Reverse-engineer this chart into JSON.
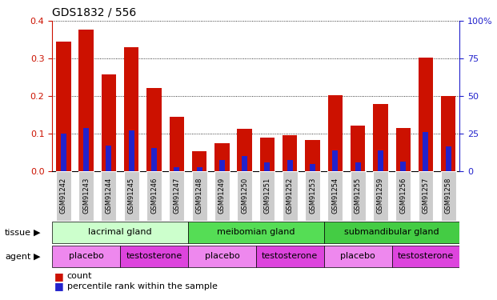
{
  "title": "GDS1832 / 556",
  "samples": [
    "GSM91242",
    "GSM91243",
    "GSM91244",
    "GSM91245",
    "GSM91246",
    "GSM91247",
    "GSM91248",
    "GSM91249",
    "GSM91250",
    "GSM91251",
    "GSM91252",
    "GSM91253",
    "GSM91254",
    "GSM91255",
    "GSM91259",
    "GSM91256",
    "GSM91257",
    "GSM91258"
  ],
  "count_values": [
    0.345,
    0.378,
    0.258,
    0.33,
    0.222,
    0.145,
    0.053,
    0.075,
    0.112,
    0.088,
    0.096,
    0.082,
    0.202,
    0.122,
    0.178,
    0.115,
    0.302,
    0.2
  ],
  "percentile_values": [
    0.1,
    0.115,
    0.068,
    0.108,
    0.062,
    0.01,
    0.01,
    0.03,
    0.04,
    0.022,
    0.03,
    0.018,
    0.055,
    0.022,
    0.055,
    0.025,
    0.105,
    0.065
  ],
  "count_color": "#cc1100",
  "percentile_color": "#2222cc",
  "bar_width": 0.65,
  "ylim_left": [
    0,
    0.4
  ],
  "ylim_right": [
    0,
    100
  ],
  "yticks_left": [
    0,
    0.1,
    0.2,
    0.3,
    0.4
  ],
  "yticks_right": [
    0,
    25,
    50,
    75,
    100
  ],
  "ytick_labels_right": [
    "0",
    "25",
    "50",
    "75",
    "100%"
  ],
  "tissue_groups": [
    {
      "label": "lacrimal gland",
      "start": 0,
      "end": 6,
      "color": "#ccffcc"
    },
    {
      "label": "meibomian gland",
      "start": 6,
      "end": 12,
      "color": "#55dd55"
    },
    {
      "label": "submandibular gland",
      "start": 12,
      "end": 18,
      "color": "#44cc44"
    }
  ],
  "agent_groups": [
    {
      "label": "placebo",
      "start": 0,
      "end": 3,
      "color": "#ee88ee"
    },
    {
      "label": "testosterone",
      "start": 3,
      "end": 6,
      "color": "#dd44dd"
    },
    {
      "label": "placebo",
      "start": 6,
      "end": 9,
      "color": "#ee88ee"
    },
    {
      "label": "testosterone",
      "start": 9,
      "end": 12,
      "color": "#dd44dd"
    },
    {
      "label": "placebo",
      "start": 12,
      "end": 15,
      "color": "#ee88ee"
    },
    {
      "label": "testosterone",
      "start": 15,
      "end": 18,
      "color": "#dd44dd"
    }
  ],
  "legend_count_label": "count",
  "legend_pct_label": "percentile rank within the sample",
  "tissue_label": "tissue",
  "agent_label": "agent",
  "count_color_left": "#cc1100",
  "pct_color_right": "#2222cc"
}
